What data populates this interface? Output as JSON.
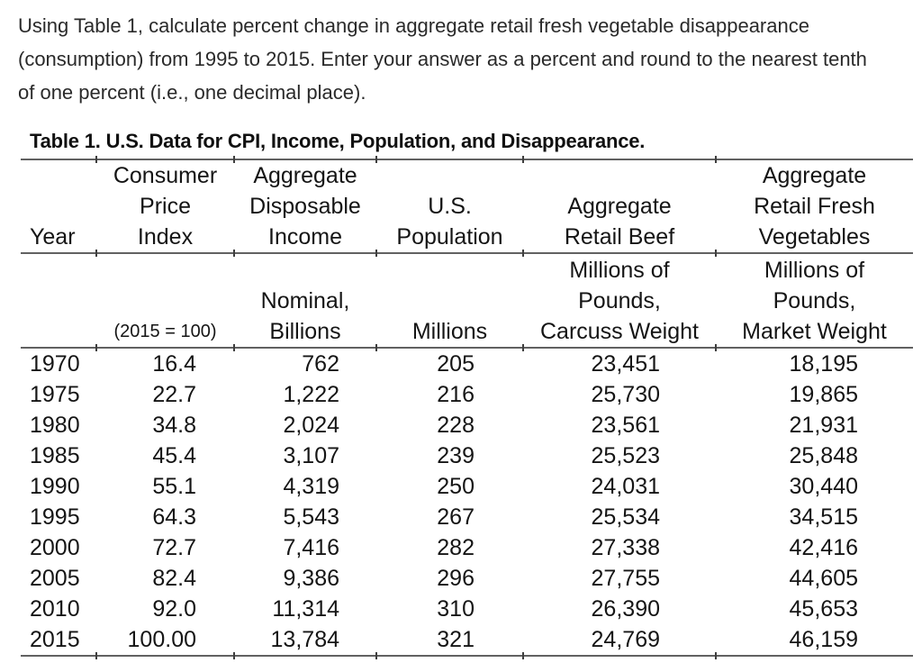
{
  "question": {
    "lines": [
      "Using Table 1, calculate percent change in aggregate retail fresh vegetable disappearance",
      "(consumption) from 1995 to 2015. Enter your answer as a percent and round to the nearest tenth",
      "of one percent (i.e., one decimal place)."
    ]
  },
  "table": {
    "title": "Table 1. U.S. Data for CPI, Income, Population, and Disappearance.",
    "columns": [
      {
        "id": "year",
        "header_lines": [
          "Year"
        ],
        "subheader_lines": []
      },
      {
        "id": "cpi",
        "header_lines": [
          "Consumer",
          "Price",
          "Index"
        ],
        "subheader_lines": [
          "(2015 = 100)"
        ]
      },
      {
        "id": "income",
        "header_lines": [
          "Aggregate",
          "Disposable",
          "Income"
        ],
        "subheader_lines": [
          "Nominal,",
          "Billions"
        ]
      },
      {
        "id": "population",
        "header_lines": [
          "U.S.",
          "Population"
        ],
        "subheader_lines": [
          "Millions"
        ]
      },
      {
        "id": "beef",
        "header_lines": [
          "Aggregate",
          "Retail Beef"
        ],
        "subheader_lines": [
          "Millions of",
          "Pounds,",
          "Carcuss Weight"
        ]
      },
      {
        "id": "vegetables",
        "header_lines": [
          "Aggregate",
          "Retail Fresh",
          "Vegetables"
        ],
        "subheader_lines": [
          "Millions of",
          "Pounds,",
          "Market Weight"
        ]
      }
    ],
    "rows": [
      {
        "year": "1970",
        "cpi": "16.4",
        "income": "762",
        "population": "205",
        "beef": "23,451",
        "vegetables": "18,195"
      },
      {
        "year": "1975",
        "cpi": "22.7",
        "income": "1,222",
        "population": "216",
        "beef": "25,730",
        "vegetables": "19,865"
      },
      {
        "year": "1980",
        "cpi": "34.8",
        "income": "2,024",
        "population": "228",
        "beef": "23,561",
        "vegetables": "21,931"
      },
      {
        "year": "1985",
        "cpi": "45.4",
        "income": "3,107",
        "population": "239",
        "beef": "25,523",
        "vegetables": "25,848"
      },
      {
        "year": "1990",
        "cpi": "55.1",
        "income": "4,319",
        "population": "250",
        "beef": "24,031",
        "vegetables": "30,440"
      },
      {
        "year": "1995",
        "cpi": "64.3",
        "income": "5,543",
        "population": "267",
        "beef": "25,534",
        "vegetables": "34,515"
      },
      {
        "year": "2000",
        "cpi": "72.7",
        "income": "7,416",
        "population": "282",
        "beef": "27,338",
        "vegetables": "42,416"
      },
      {
        "year": "2005",
        "cpi": "82.4",
        "income": "9,386",
        "population": "296",
        "beef": "27,755",
        "vegetables": "44,605"
      },
      {
        "year": "2010",
        "cpi": "92.0",
        "income": "11,314",
        "population": "310",
        "beef": "26,390",
        "vegetables": "45,653"
      },
      {
        "year": "2015",
        "cpi": "100.00",
        "income": "13,784",
        "population": "321",
        "beef": "24,769",
        "vegetables": "46,159"
      }
    ]
  },
  "colors": {
    "text": "#151515",
    "rule": "#616161",
    "tick": "#3f3f3f"
  }
}
